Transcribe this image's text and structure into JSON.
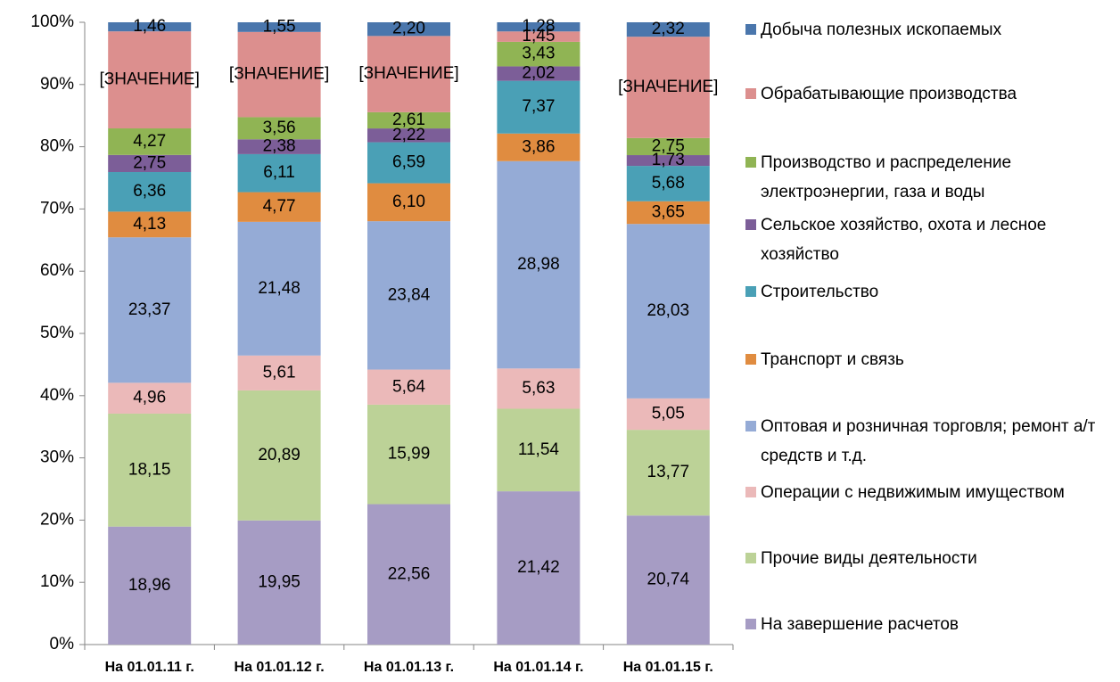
{
  "chart_data": {
    "type": "bar",
    "stacking": "percent",
    "categories": [
      "На 01.01.11 г.",
      "На 01.01.12 г.",
      "На 01.01.13 г.",
      "На 01.01.14 г.",
      "На 01.01.15 г."
    ],
    "ylim": [
      0,
      100
    ],
    "yticks": [
      {
        "value": 0,
        "label": "0%"
      },
      {
        "value": 10,
        "label": "10%"
      },
      {
        "value": 20,
        "label": "20%"
      },
      {
        "value": 30,
        "label": "30%"
      },
      {
        "value": 40,
        "label": "40%"
      },
      {
        "value": 50,
        "label": "50%"
      },
      {
        "value": 60,
        "label": "60%"
      },
      {
        "value": 70,
        "label": "70%"
      },
      {
        "value": 80,
        "label": "80%"
      },
      {
        "value": 90,
        "label": "90%"
      },
      {
        "value": 100,
        "label": "100%"
      }
    ],
    "legend": "right",
    "series": [
      {
        "name": "На завершение расчетов",
        "color": "#a69cc4",
        "values": [
          18.96,
          19.95,
          22.56,
          21.42,
          20.74
        ],
        "value_labels": [
          "18,96",
          "19,95",
          "22,56",
          "21,42",
          "20,74"
        ]
      },
      {
        "name": "Прочие виды деятельности",
        "color": "#bcd297",
        "values": [
          18.15,
          20.89,
          15.99,
          11.54,
          13.77
        ],
        "value_labels": [
          "18,15",
          "20,89",
          "15,99",
          "11,54",
          "13,77"
        ]
      },
      {
        "name": "Операции с недвижимым имуществом",
        "color": "#ebb9b9",
        "values": [
          4.96,
          5.61,
          5.64,
          5.63,
          5.05
        ],
        "value_labels": [
          "4,96",
          "5,61",
          "5,64",
          "5,63",
          "5,05"
        ]
      },
      {
        "name": "Оптовая и розничная торговля; ремонт а/т средств и т.д.",
        "color": "#95abd6",
        "values": [
          23.37,
          21.48,
          23.84,
          28.98,
          28.03
        ],
        "value_labels": [
          "23,37",
          "21,48",
          "23,84",
          "28,98",
          "28,03"
        ]
      },
      {
        "name": "Транспорт и связь",
        "color": "#e08c40",
        "values": [
          4.13,
          4.77,
          6.1,
          3.86,
          3.65
        ],
        "value_labels": [
          "4,13",
          "4,77",
          "6,10",
          "3,86",
          "3,65"
        ]
      },
      {
        "name": "Строительство",
        "color": "#4aa0b6",
        "values": [
          6.36,
          6.11,
          6.59,
          7.37,
          5.68
        ],
        "value_labels": [
          "6,36",
          "6,11",
          "6,59",
          "7,37",
          "5,68"
        ]
      },
      {
        "name": "Сельское хозяйство, охота и лесное хозяйство",
        "color": "#7c5e98",
        "values": [
          2.75,
          2.38,
          2.22,
          2.02,
          1.73
        ],
        "value_labels": [
          "2,75",
          "2,38",
          "2,22",
          "2,02",
          "1,73"
        ]
      },
      {
        "name": "Производство и распределение электроэнергии, газа и воды",
        "color": "#90b454",
        "values": [
          4.27,
          3.56,
          2.61,
          3.43,
          2.75
        ],
        "value_labels": [
          "4,27",
          "3,56",
          "2,61",
          "3,43",
          "2,75"
        ]
      },
      {
        "name": "Обрабатывающие производства",
        "color": "#dc8f8e",
        "values": [
          15.59,
          13.7,
          12.25,
          1.45,
          16.28
        ],
        "value_labels": [
          "[ЗНАЧЕНИЕ]",
          "[ЗНАЧЕНИЕ]",
          "[ЗНАЧЕНИЕ]",
          "1,45",
          "[ЗНАЧЕНИЕ]"
        ]
      },
      {
        "name": "Добыча полезных ископаемых",
        "color": "#4a76ac",
        "values": [
          1.46,
          1.55,
          2.2,
          1.28,
          2.32
        ],
        "value_labels": [
          "1,46",
          "1,55",
          "2,20",
          "1,28",
          "2,32"
        ]
      }
    ]
  }
}
